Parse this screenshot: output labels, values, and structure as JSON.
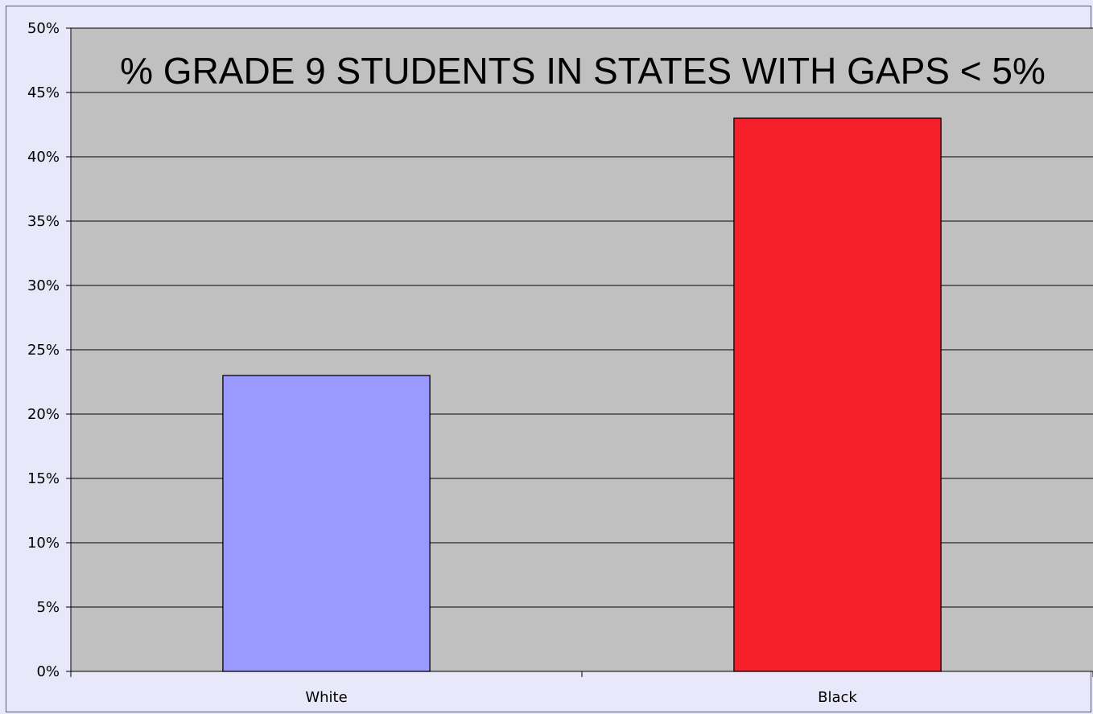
{
  "chart_data": {
    "type": "bar",
    "title": "% GRADE 9 STUDENTS IN STATES WITH GAPS < 5%",
    "xlabel": "",
    "ylabel": "",
    "categories": [
      "White",
      "Black"
    ],
    "values": [
      0.23,
      0.43
    ],
    "bar_colors": [
      "#9999ff",
      "#f5202a"
    ],
    "ylim": [
      0,
      0.5
    ],
    "y_ticks": [
      0,
      0.05,
      0.1,
      0.15,
      0.2,
      0.25,
      0.3,
      0.35,
      0.4,
      0.45,
      0.5
    ],
    "y_tick_labels": [
      "0%",
      "5%",
      "10%",
      "15%",
      "20%",
      "25%",
      "30%",
      "35%",
      "40%",
      "45%",
      "50%"
    ],
    "grid": true,
    "legend": "none",
    "plot_background": "#c0c0c0"
  }
}
